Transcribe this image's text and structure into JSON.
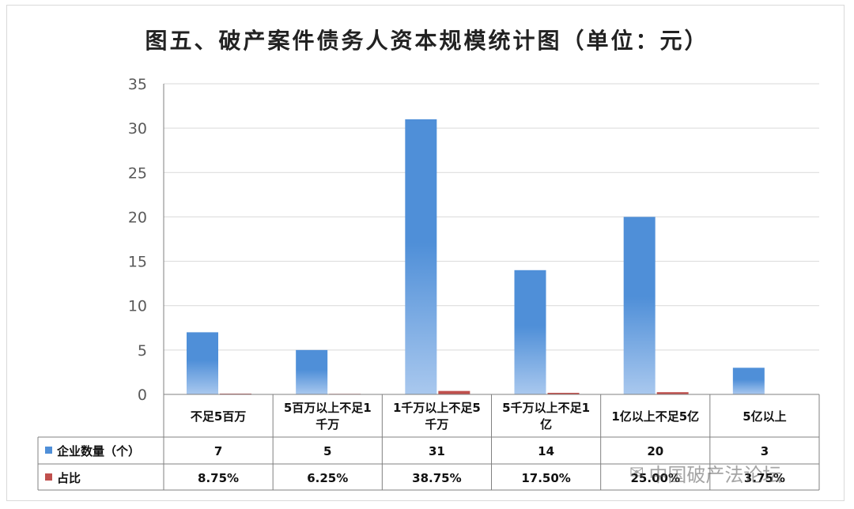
{
  "title": "图五、破产案件债务人资本规模统计图（单位：元）",
  "watermark": "中国破产法论坛",
  "colors": {
    "count": "#4f8fd8",
    "count_light": "#a9c8ee",
    "ratio": "#c0504d",
    "grid": "#d9d9d9",
    "axis": "#808080"
  },
  "chart_data": {
    "type": "bar",
    "title": "图五、破产案件债务人资本规模统计图（单位：元）",
    "categories_display": [
      [
        "不足5百万"
      ],
      [
        "5百万以上不足1",
        "千万"
      ],
      [
        "1千万以上不足5",
        "千万"
      ],
      [
        "5千万以上不足1",
        "亿"
      ],
      [
        "1亿以上不足5亿"
      ],
      [
        "5亿以上"
      ]
    ],
    "categories": [
      "不足5百万",
      "5百万以上不足1千万",
      "1千万以上不足5千万",
      "5千万以上不足1亿",
      "1亿以上不足5亿",
      "5亿以上"
    ],
    "ylim": [
      0,
      35
    ],
    "yticks": [
      0,
      5,
      10,
      15,
      20,
      25,
      30,
      35
    ],
    "grid": true,
    "series": [
      {
        "name": "企业数量（个）",
        "values": [
          7,
          5,
          31,
          14,
          20,
          3
        ],
        "labels": [
          "7",
          "5",
          "31",
          "14",
          "20",
          "3"
        ]
      },
      {
        "name": "占比",
        "values": [
          0.0875,
          0.0625,
          0.3875,
          0.175,
          0.25,
          0.0375
        ],
        "labels": [
          "8.75%",
          "6.25%",
          "38.75%",
          "17.50%",
          "25.00%",
          "3.75%"
        ]
      }
    ],
    "legend": "data-table-left"
  }
}
